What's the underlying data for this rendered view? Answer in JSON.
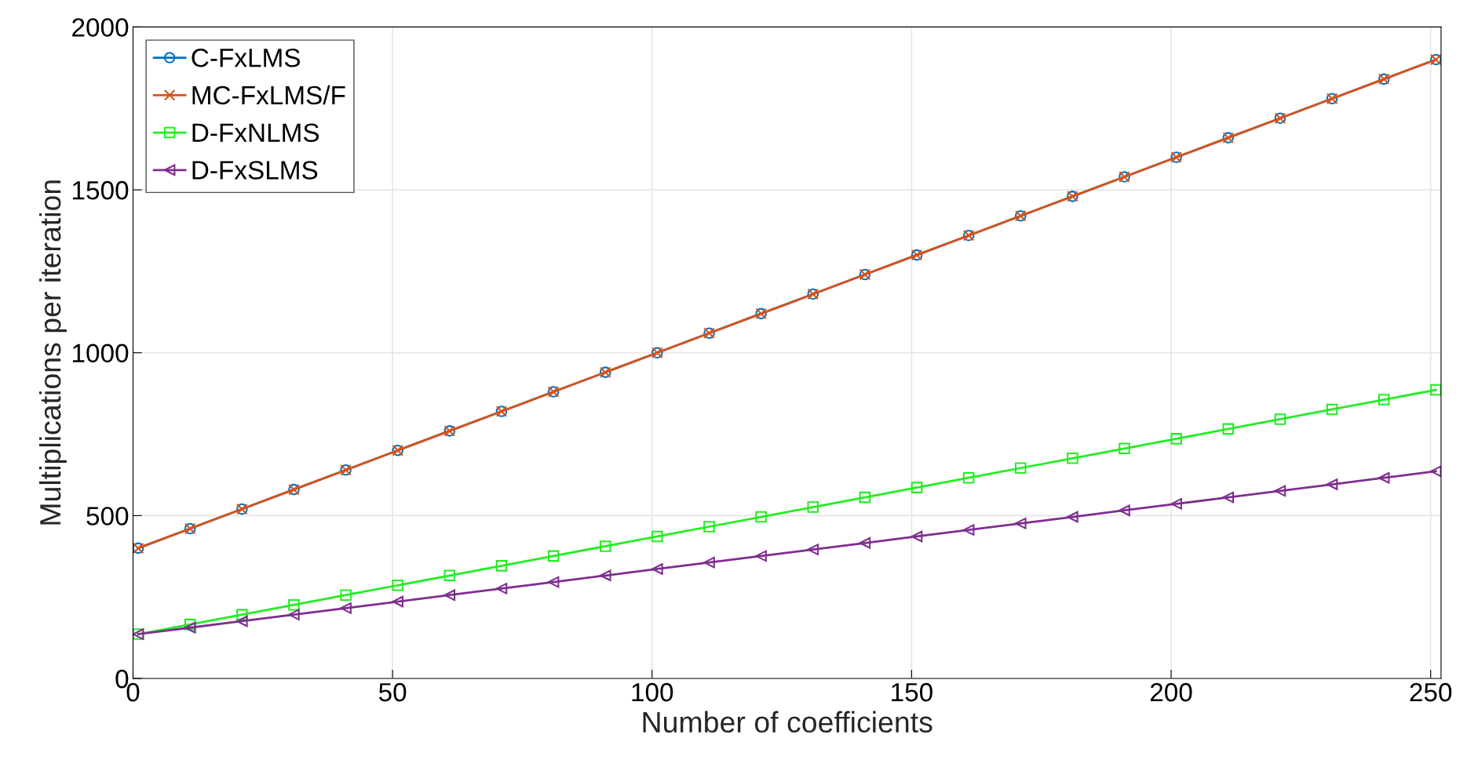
{
  "chart_data": {
    "type": "line",
    "xlabel": "Number of coefficients",
    "ylabel": "Multiplications per iteration",
    "x": [
      1,
      11,
      21,
      31,
      41,
      51,
      61,
      71,
      81,
      91,
      101,
      111,
      121,
      131,
      141,
      151,
      161,
      171,
      181,
      191,
      201,
      211,
      221,
      231,
      241,
      251
    ],
    "series": [
      {
        "name": "C-FxLMS",
        "color": "#0072bd",
        "marker": "circle",
        "values": [
          400,
          460,
          520,
          580,
          640,
          700,
          760,
          820,
          880,
          940,
          1000,
          1060,
          1120,
          1180,
          1240,
          1300,
          1360,
          1420,
          1480,
          1540,
          1600,
          1660,
          1720,
          1780,
          1840,
          1900
        ]
      },
      {
        "name": "MC-FxLMS/F",
        "color": "#d95319",
        "marker": "cross",
        "values": [
          400,
          460,
          520,
          580,
          640,
          700,
          760,
          820,
          880,
          940,
          1000,
          1060,
          1120,
          1180,
          1240,
          1300,
          1360,
          1420,
          1480,
          1540,
          1600,
          1660,
          1720,
          1780,
          1840,
          1900
        ]
      },
      {
        "name": "D-FxNLMS",
        "color": "#22ee22",
        "marker": "square",
        "values": [
          136,
          166,
          196,
          226,
          256,
          286,
          316,
          346,
          376,
          406,
          436,
          466,
          496,
          526,
          556,
          586,
          616,
          646,
          676,
          706,
          736,
          766,
          796,
          826,
          856,
          886
        ]
      },
      {
        "name": "D-FxSLMS",
        "color": "#7e2f8e",
        "marker": "triangle",
        "values": [
          136,
          156,
          176,
          196,
          216,
          236,
          256,
          276,
          296,
          316,
          336,
          356,
          376,
          396,
          416,
          436,
          456,
          476,
          496,
          516,
          536,
          556,
          576,
          596,
          616,
          636
        ]
      }
    ],
    "xlim": [
      0,
      252
    ],
    "xticks": [
      0,
      50,
      100,
      150,
      200,
      250
    ],
    "ylim": [
      0,
      2000
    ],
    "yticks": [
      0,
      500,
      1000,
      1500,
      2000
    ],
    "grid": true,
    "legend": "top left",
    "line_style": "solid"
  }
}
